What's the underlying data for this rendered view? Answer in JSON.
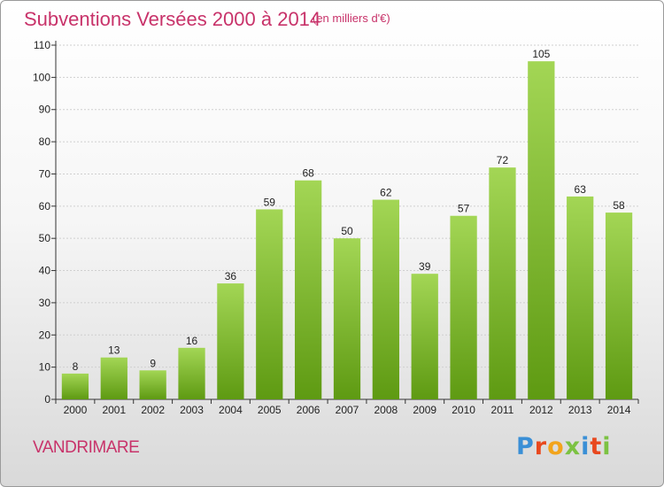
{
  "chart_data": {
    "type": "bar",
    "title": "Subventions Versées 2000 à 2014",
    "unit_note": "(en milliers d'€)",
    "categories": [
      "2000",
      "2001",
      "2002",
      "2003",
      "2004",
      "2005",
      "2006",
      "2007",
      "2008",
      "2009",
      "2010",
      "2011",
      "2012",
      "2013",
      "2014"
    ],
    "values": [
      8,
      13,
      9,
      16,
      36,
      59,
      68,
      50,
      62,
      39,
      57,
      72,
      105,
      63,
      58
    ],
    "ylim": [
      0,
      110
    ],
    "yticks": [
      0,
      10,
      20,
      30,
      40,
      50,
      60,
      70,
      80,
      90,
      100,
      110
    ],
    "grid": true,
    "legend": "none",
    "bar_color_top": "#a3d655",
    "bar_color_bottom": "#5e9a12"
  },
  "footer": {
    "commune": "VANDRIMARE",
    "logo_letters": [
      {
        "ch": "P",
        "color": "#3a8fd6"
      },
      {
        "ch": "r",
        "color": "#e8481e"
      },
      {
        "ch": "o",
        "color": "#f2a41c"
      },
      {
        "ch": "x",
        "color": "#7cc242"
      },
      {
        "ch": "i",
        "color": "#3a8fd6"
      },
      {
        "ch": "t",
        "color": "#e8481e"
      },
      {
        "ch": "i",
        "color": "#7cc242"
      }
    ]
  },
  "colors": {
    "accent": "#c8336a"
  }
}
